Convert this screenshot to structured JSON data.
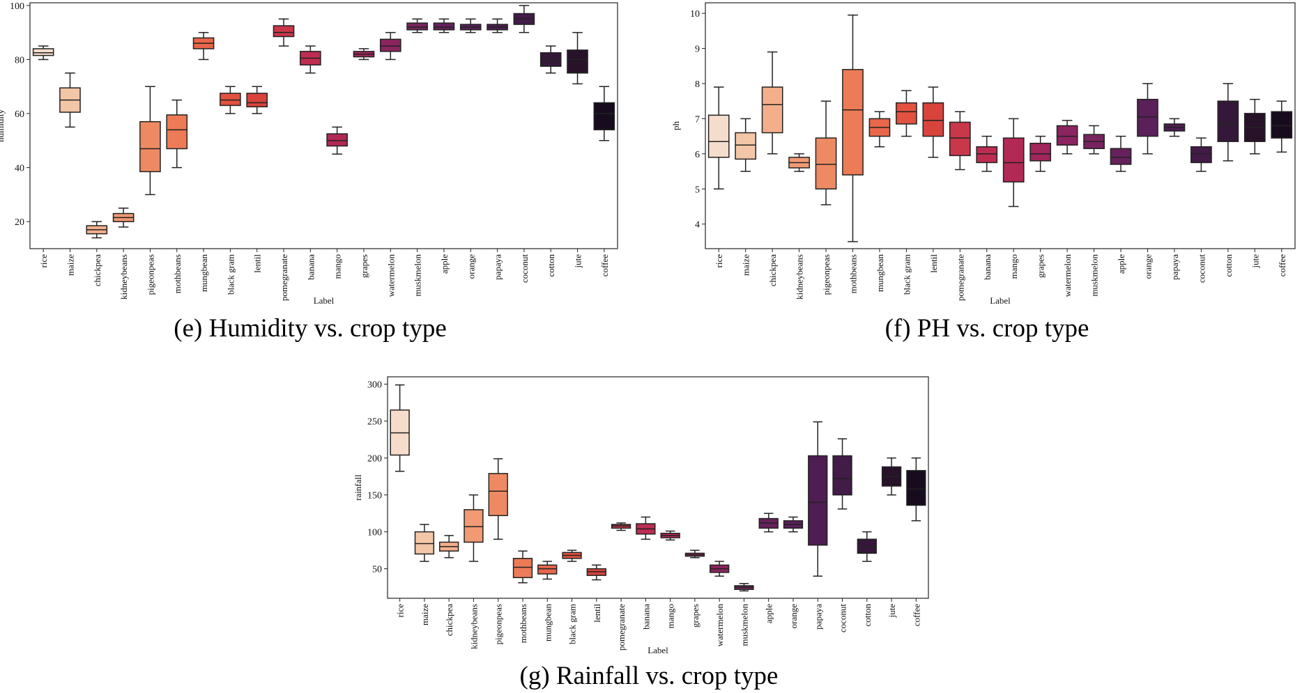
{
  "chart_data": [
    {
      "type": "boxplot",
      "id": "humidity",
      "caption": "(e) Humidity vs. crop type",
      "xlabel": "Label",
      "ylabel": "humidity",
      "ylim": [
        10,
        101
      ],
      "yticks": [
        20,
        40,
        60,
        80,
        100
      ],
      "categories": [
        "rice",
        "maize",
        "chickpea",
        "kidneybeans",
        "pigeonpeas",
        "mothbeans",
        "mungbean",
        "black gram",
        "lentil",
        "pomegranate",
        "banana",
        "mango",
        "grapes",
        "watermelon",
        "muskmelon",
        "apple",
        "orange",
        "papaya",
        "coconut",
        "cotton",
        "jute",
        "coffee"
      ],
      "colors": [
        "#f6dccb",
        "#f4c6a8",
        "#f3ae8b",
        "#f19a73",
        "#ee8a63",
        "#ec7b56",
        "#e9664a",
        "#e2523f",
        "#d8443c",
        "#c9374a",
        "#be2d51",
        "#b22955",
        "#a0265b",
        "#8c2460",
        "#78245f",
        "#66215c",
        "#5a2059",
        "#4e1d52",
        "#421b47",
        "#351839",
        "#27122a",
        "#170c1d"
      ],
      "boxes": [
        {
          "min": 80,
          "q1": 81.5,
          "median": 82.5,
          "q3": 84,
          "max": 85
        },
        {
          "min": 55,
          "q1": 60.5,
          "median": 65,
          "q3": 69.5,
          "max": 75
        },
        {
          "min": 14,
          "q1": 15.5,
          "median": 17,
          "q3": 18.5,
          "max": 20
        },
        {
          "min": 18,
          "q1": 20,
          "median": 21.5,
          "q3": 23,
          "max": 25
        },
        {
          "min": 30,
          "q1": 38.5,
          "median": 47,
          "q3": 57,
          "max": 70
        },
        {
          "min": 40,
          "q1": 47,
          "median": 54,
          "q3": 59.5,
          "max": 65
        },
        {
          "min": 80,
          "q1": 84,
          "median": 86,
          "q3": 88,
          "max": 90
        },
        {
          "min": 60,
          "q1": 63,
          "median": 65,
          "q3": 67.5,
          "max": 70
        },
        {
          "min": 60,
          "q1": 62.5,
          "median": 64,
          "q3": 67.5,
          "max": 70
        },
        {
          "min": 85,
          "q1": 88.5,
          "median": 90,
          "q3": 92.5,
          "max": 95
        },
        {
          "min": 75,
          "q1": 78,
          "median": 80.5,
          "q3": 83,
          "max": 85
        },
        {
          "min": 45,
          "q1": 48,
          "median": 50,
          "q3": 52.5,
          "max": 55
        },
        {
          "min": 80,
          "q1": 81,
          "median": 82,
          "q3": 83,
          "max": 84
        },
        {
          "min": 80,
          "q1": 83,
          "median": 85,
          "q3": 87.5,
          "max": 90
        },
        {
          "min": 90,
          "q1": 91,
          "median": 92,
          "q3": 93.5,
          "max": 95
        },
        {
          "min": 90,
          "q1": 91,
          "median": 92,
          "q3": 93.5,
          "max": 95
        },
        {
          "min": 90,
          "q1": 91,
          "median": 92,
          "q3": 93,
          "max": 95
        },
        {
          "min": 90,
          "q1": 91,
          "median": 92,
          "q3": 93,
          "max": 95
        },
        {
          "min": 90,
          "q1": 93,
          "median": 95,
          "q3": 97,
          "max": 100
        },
        {
          "min": 75,
          "q1": 77.5,
          "median": 80,
          "q3": 82.5,
          "max": 85
        },
        {
          "min": 71,
          "q1": 75,
          "median": 80,
          "q3": 83.5,
          "max": 90
        },
        {
          "min": 50,
          "q1": 54,
          "median": 60,
          "q3": 64,
          "max": 70
        }
      ]
    },
    {
      "type": "boxplot",
      "id": "ph",
      "caption": "(f) PH vs. crop type",
      "xlabel": "Label",
      "ylabel": "ph",
      "ylim": [
        3.3,
        10.3
      ],
      "yticks": [
        4,
        5,
        6,
        7,
        8,
        9,
        10
      ],
      "categories": [
        "rice",
        "maize",
        "chickpea",
        "kidneybeans",
        "pigeonpeas",
        "mothbeans",
        "mungbean",
        "black gram",
        "lentil",
        "pomegranate",
        "banana",
        "mango",
        "grapes",
        "watermelon",
        "muskmelon",
        "apple",
        "orange",
        "papaya",
        "coconut",
        "cotton",
        "jute",
        "coffee"
      ],
      "colors": [
        "#f6dccb",
        "#f4c6a8",
        "#f3ae8b",
        "#f19a73",
        "#ee8a63",
        "#ec7b56",
        "#e9664a",
        "#e2523f",
        "#d8443c",
        "#c9374a",
        "#be2d51",
        "#b22955",
        "#a0265b",
        "#8c2460",
        "#78245f",
        "#66215c",
        "#5a2059",
        "#4e1d52",
        "#421b47",
        "#351839",
        "#27122a",
        "#170c1d"
      ],
      "boxes": [
        {
          "min": 5.0,
          "q1": 5.9,
          "median": 6.35,
          "q3": 7.1,
          "max": 7.9
        },
        {
          "min": 5.5,
          "q1": 5.85,
          "median": 6.25,
          "q3": 6.6,
          "max": 7.0
        },
        {
          "min": 6.0,
          "q1": 6.6,
          "median": 7.4,
          "q3": 7.9,
          "max": 8.9
        },
        {
          "min": 5.5,
          "q1": 5.6,
          "median": 5.75,
          "q3": 5.9,
          "max": 6.0
        },
        {
          "min": 4.55,
          "q1": 5.0,
          "median": 5.7,
          "q3": 6.45,
          "max": 7.5
        },
        {
          "min": 3.5,
          "q1": 5.4,
          "median": 7.25,
          "q3": 8.4,
          "max": 9.95
        },
        {
          "min": 6.2,
          "q1": 6.5,
          "median": 6.75,
          "q3": 7.0,
          "max": 7.2
        },
        {
          "min": 6.5,
          "q1": 6.85,
          "median": 7.2,
          "q3": 7.45,
          "max": 7.8
        },
        {
          "min": 5.9,
          "q1": 6.5,
          "median": 6.95,
          "q3": 7.45,
          "max": 7.9
        },
        {
          "min": 5.55,
          "q1": 5.95,
          "median": 6.45,
          "q3": 6.9,
          "max": 7.2
        },
        {
          "min": 5.5,
          "q1": 5.75,
          "median": 6.0,
          "q3": 6.2,
          "max": 6.5
        },
        {
          "min": 4.5,
          "q1": 5.2,
          "median": 5.75,
          "q3": 6.45,
          "max": 7.0
        },
        {
          "min": 5.5,
          "q1": 5.8,
          "median": 6.0,
          "q3": 6.3,
          "max": 6.5
        },
        {
          "min": 6.0,
          "q1": 6.25,
          "median": 6.5,
          "q3": 6.8,
          "max": 6.95
        },
        {
          "min": 6.0,
          "q1": 6.15,
          "median": 6.35,
          "q3": 6.55,
          "max": 6.8
        },
        {
          "min": 5.5,
          "q1": 5.7,
          "median": 5.9,
          "q3": 6.15,
          "max": 6.5
        },
        {
          "min": 6.0,
          "q1": 6.5,
          "median": 7.05,
          "q3": 7.55,
          "max": 8.0
        },
        {
          "min": 6.5,
          "q1": 6.65,
          "median": 6.75,
          "q3": 6.85,
          "max": 7.0
        },
        {
          "min": 5.5,
          "q1": 5.75,
          "median": 6.0,
          "q3": 6.2,
          "max": 6.45
        },
        {
          "min": 5.8,
          "q1": 6.35,
          "median": 6.85,
          "q3": 7.5,
          "max": 8.0
        },
        {
          "min": 6.0,
          "q1": 6.35,
          "median": 6.75,
          "q3": 7.15,
          "max": 7.55
        },
        {
          "min": 6.05,
          "q1": 6.45,
          "median": 6.8,
          "q3": 7.2,
          "max": 7.5
        }
      ]
    },
    {
      "type": "boxplot",
      "id": "rainfall",
      "caption": "(g) Rainfall vs. crop type",
      "xlabel": "Label",
      "ylabel": "rainfall",
      "ylim": [
        10,
        310
      ],
      "yticks": [
        50,
        100,
        150,
        200,
        250,
        300
      ],
      "categories": [
        "rice",
        "maize",
        "chickpea",
        "kidneybeans",
        "pigeonpeas",
        "mothbeans",
        "mungbean",
        "black gram",
        "lentil",
        "pomegranate",
        "banana",
        "mango",
        "grapes",
        "watermelon",
        "muskmelon",
        "apple",
        "orange",
        "papaya",
        "coconut",
        "cotton",
        "jute",
        "coffee"
      ],
      "colors": [
        "#f6dccb",
        "#f4c6a8",
        "#f3ae8b",
        "#f19a73",
        "#ee8a63",
        "#ec7b56",
        "#e9664a",
        "#e2523f",
        "#d8443c",
        "#c9374a",
        "#be2d51",
        "#b22955",
        "#a0265b",
        "#8c2460",
        "#78245f",
        "#66215c",
        "#5a2059",
        "#4e1d52",
        "#421b47",
        "#351839",
        "#27122a",
        "#170c1d"
      ],
      "boxes": [
        {
          "min": 182,
          "q1": 204,
          "median": 234,
          "q3": 265,
          "max": 299
        },
        {
          "min": 60,
          "q1": 70,
          "median": 84,
          "q3": 100,
          "max": 110
        },
        {
          "min": 65,
          "q1": 74,
          "median": 80,
          "q3": 86,
          "max": 95
        },
        {
          "min": 60,
          "q1": 86,
          "median": 107,
          "q3": 130,
          "max": 150
        },
        {
          "min": 90,
          "q1": 122,
          "median": 155,
          "q3": 179,
          "max": 199
        },
        {
          "min": 31,
          "q1": 38,
          "median": 52,
          "q3": 64,
          "max": 74
        },
        {
          "min": 36,
          "q1": 43,
          "median": 50,
          "q3": 55,
          "max": 60
        },
        {
          "min": 60,
          "q1": 64,
          "median": 68,
          "q3": 72,
          "max": 75
        },
        {
          "min": 35,
          "q1": 41,
          "median": 46,
          "q3": 50,
          "max": 55
        },
        {
          "min": 102,
          "q1": 105,
          "median": 108,
          "q3": 110,
          "max": 112
        },
        {
          "min": 90,
          "q1": 97,
          "median": 104,
          "q3": 111,
          "max": 120
        },
        {
          "min": 89,
          "q1": 92,
          "median": 95,
          "q3": 98,
          "max": 101
        },
        {
          "min": 65,
          "q1": 67,
          "median": 69,
          "q3": 71,
          "max": 75
        },
        {
          "min": 40,
          "q1": 45,
          "median": 50,
          "q3": 55,
          "max": 60
        },
        {
          "min": 20,
          "q1": 22,
          "median": 25,
          "q3": 27,
          "max": 30
        },
        {
          "min": 100,
          "q1": 105,
          "median": 112,
          "q3": 118,
          "max": 125
        },
        {
          "min": 100,
          "q1": 105,
          "median": 110,
          "q3": 115,
          "max": 120
        },
        {
          "min": 40,
          "q1": 82,
          "median": 140,
          "q3": 203,
          "max": 249
        },
        {
          "min": 131,
          "q1": 150,
          "median": 172,
          "q3": 203,
          "max": 226
        },
        {
          "min": 60,
          "q1": 71,
          "median": 80,
          "q3": 90,
          "max": 100
        },
        {
          "min": 150,
          "q1": 162,
          "median": 175,
          "q3": 188,
          "max": 200
        },
        {
          "min": 115,
          "q1": 136,
          "median": 158,
          "q3": 183,
          "max": 200
        }
      ]
    }
  ]
}
